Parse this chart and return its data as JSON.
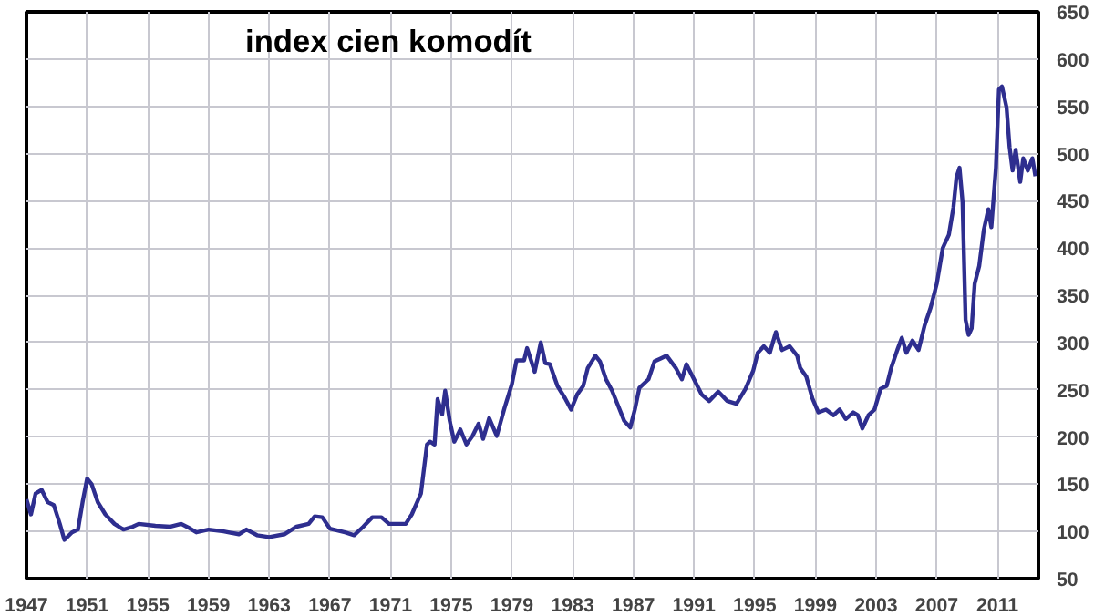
{
  "chart_data": {
    "type": "line",
    "title": "index cien komodít",
    "x": [
      1947.0,
      1947.3,
      1947.6,
      1948.0,
      1948.4,
      1948.8,
      1949.2,
      1949.5,
      1950.0,
      1950.4,
      1950.7,
      1951.0,
      1951.3,
      1951.7,
      1952.2,
      1952.8,
      1953.4,
      1954.0,
      1954.4,
      1955.5,
      1956.5,
      1957.2,
      1957.8,
      1958.2,
      1959.0,
      1960.0,
      1961.0,
      1961.5,
      1962.2,
      1963.0,
      1964.0,
      1964.8,
      1965.6,
      1966.0,
      1966.5,
      1967.0,
      1968.0,
      1968.6,
      1969.2,
      1969.8,
      1970.4,
      1970.9,
      1971.5,
      1972.0,
      1972.4,
      1973.0,
      1973.4,
      1973.6,
      1973.9,
      1974.1,
      1974.4,
      1974.6,
      1974.9,
      1975.2,
      1975.6,
      1976.0,
      1976.4,
      1976.8,
      1977.1,
      1977.5,
      1978.0,
      1978.5,
      1979.0,
      1979.3,
      1979.8,
      1980.0,
      1980.5,
      1980.9,
      1981.2,
      1981.5,
      1982.0,
      1982.5,
      1982.9,
      1983.3,
      1983.7,
      1984.0,
      1984.5,
      1984.8,
      1985.2,
      1985.6,
      1986.0,
      1986.4,
      1986.8,
      1987.1,
      1987.4,
      1988.0,
      1988.4,
      1988.8,
      1989.2,
      1989.8,
      1990.2,
      1990.5,
      1991.0,
      1991.5,
      1992.0,
      1992.6,
      1993.2,
      1993.8,
      1994.4,
      1994.9,
      1995.2,
      1995.6,
      1996.0,
      1996.4,
      1996.8,
      1997.3,
      1997.8,
      1998.0,
      1998.4,
      1998.8,
      1999.2,
      1999.7,
      2000.2,
      2000.6,
      2001.0,
      2001.5,
      2001.8,
      2002.1,
      2002.5,
      2002.9,
      2003.3,
      2003.7,
      2004.0,
      2004.4,
      2004.7,
      2005.0,
      2005.4,
      2005.8,
      2006.2,
      2006.6,
      2007.0,
      2007.4,
      2007.8,
      2008.1,
      2008.3,
      2008.5,
      2008.7,
      2008.9,
      2009.1,
      2009.3,
      2009.5,
      2009.8,
      2010.1,
      2010.4,
      2010.6,
      2010.9,
      2011.1,
      2011.3,
      2011.6,
      2011.8,
      2012.0,
      2012.2,
      2012.5,
      2012.7,
      2013.0,
      2013.3,
      2013.5
    ],
    "series": [
      {
        "color": "#2e2e8f",
        "values": [
          134,
          118,
          140,
          144,
          131,
          128,
          108,
          91,
          99,
          102,
          131,
          156,
          150,
          131,
          118,
          108,
          102,
          105,
          108,
          106,
          105,
          108,
          103,
          99,
          102,
          100,
          97,
          102,
          96,
          94,
          97,
          105,
          108,
          116,
          115,
          103,
          99,
          96,
          105,
          115,
          115,
          108,
          108,
          108,
          118,
          140,
          192,
          195,
          192,
          240,
          224,
          249,
          217,
          195,
          208,
          192,
          201,
          214,
          198,
          220,
          201,
          230,
          256,
          281,
          281,
          294,
          269,
          300,
          278,
          277,
          254,
          241,
          229,
          245,
          254,
          273,
          286,
          280,
          261,
          249,
          233,
          217,
          210,
          229,
          252,
          261,
          280,
          283,
          286,
          273,
          261,
          277,
          261,
          245,
          238,
          248,
          238,
          235,
          251,
          270,
          289,
          296,
          289,
          311,
          292,
          296,
          286,
          273,
          264,
          241,
          226,
          229,
          223,
          229,
          219,
          226,
          223,
          209,
          223,
          229,
          251,
          254,
          273,
          292,
          305,
          289,
          302,
          292,
          318,
          337,
          362,
          400,
          414,
          443,
          475,
          485,
          449,
          324,
          308,
          315,
          362,
          381,
          419,
          441,
          422,
          485,
          568,
          571,
          549,
          507,
          482,
          504,
          470,
          495,
          482,
          495,
          476
        ]
      }
    ],
    "xlim": [
      1947,
      2013.7
    ],
    "xticks": [
      1947,
      1951,
      1955,
      1959,
      1963,
      1967,
      1971,
      1975,
      1979,
      1983,
      1987,
      1991,
      1995,
      1999,
      2003,
      2007,
      2011
    ],
    "ylim": [
      50,
      650
    ],
    "yticks": [
      50,
      100,
      150,
      200,
      250,
      300,
      350,
      400,
      450,
      500,
      550,
      600,
      650
    ],
    "grid": true,
    "marker": "none",
    "line_style": "solid"
  }
}
